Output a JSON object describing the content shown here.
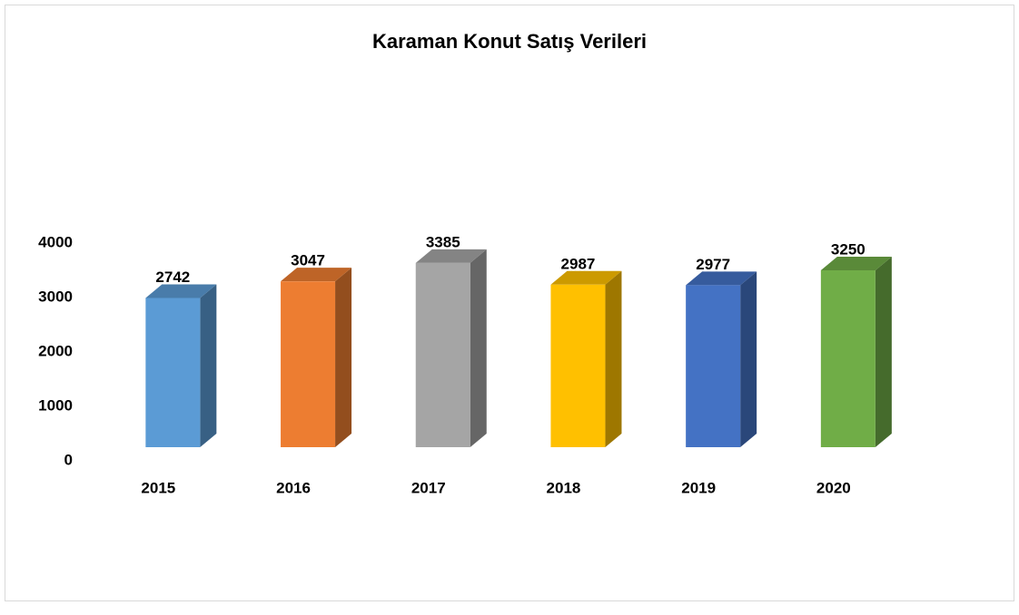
{
  "chart_data": {
    "type": "bar3d",
    "title": "Karaman Konut Satış Verileri",
    "categories": [
      "2015",
      "2016",
      "2017",
      "2018",
      "2019",
      "2020"
    ],
    "values": [
      2742,
      3047,
      3385,
      2987,
      2977,
      3250
    ],
    "colors": [
      "#5b9bd5",
      "#ed7d31",
      "#a5a5a5",
      "#ffc000",
      "#4472c4",
      "#70ad47"
    ],
    "ylim": [
      0,
      4000
    ],
    "yticks": [
      0,
      1000,
      2000,
      3000,
      4000
    ],
    "grid": false
  }
}
